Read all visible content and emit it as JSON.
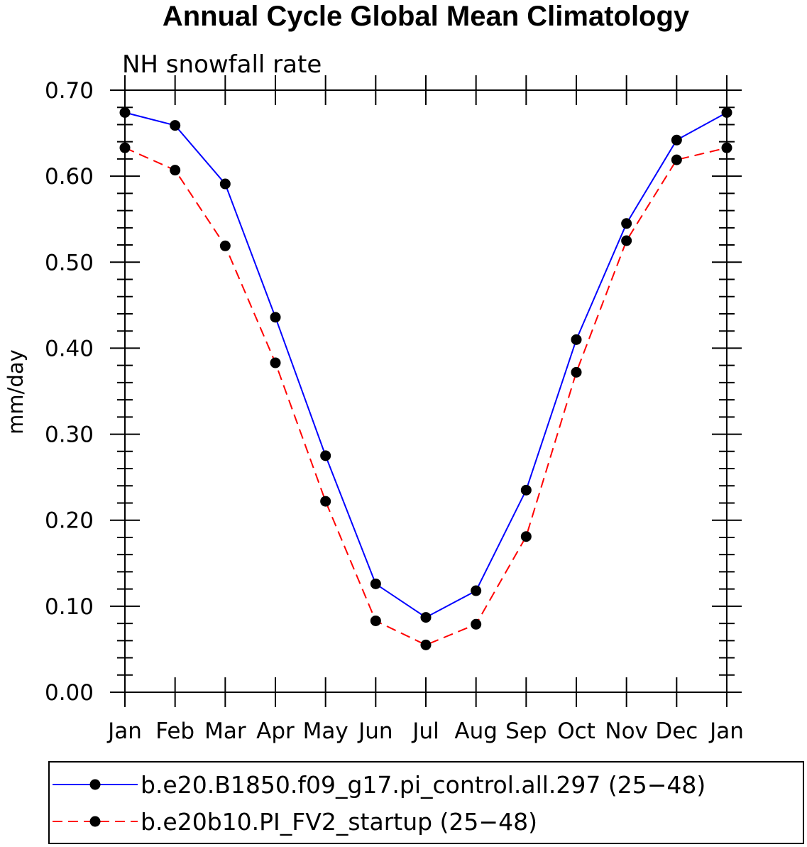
{
  "chart_data": {
    "type": "line",
    "title": "Annual Cycle Global Mean Climatology",
    "subtitle": "NH snowfall rate",
    "xlabel": "",
    "ylabel": "mm/day",
    "categories": [
      "Jan",
      "Feb",
      "Mar",
      "Apr",
      "May",
      "Jun",
      "Jul",
      "Aug",
      "Sep",
      "Oct",
      "Nov",
      "Dec",
      "Jan"
    ],
    "yticks": [
      "0.00",
      "0.10",
      "0.20",
      "0.30",
      "0.40",
      "0.50",
      "0.60",
      "0.70"
    ],
    "ylim": [
      0,
      0.7
    ],
    "grid": false,
    "legend_position": "bottom",
    "series": [
      {
        "name": "b.e20.B1850.f09_g17.pi_control.all.297 (25−48)",
        "color": "#0000ff",
        "style": "solid",
        "values": [
          0.674,
          0.659,
          0.591,
          0.436,
          0.275,
          0.126,
          0.087,
          0.118,
          0.235,
          0.41,
          0.545,
          0.642,
          0.674
        ]
      },
      {
        "name": "b.e20b10.PI_FV2_startup (25−48)",
        "color": "#ff0000",
        "style": "dashed",
        "values": [
          0.633,
          0.607,
          0.519,
          0.383,
          0.222,
          0.083,
          0.055,
          0.079,
          0.181,
          0.372,
          0.525,
          0.619,
          0.633
        ]
      }
    ]
  }
}
